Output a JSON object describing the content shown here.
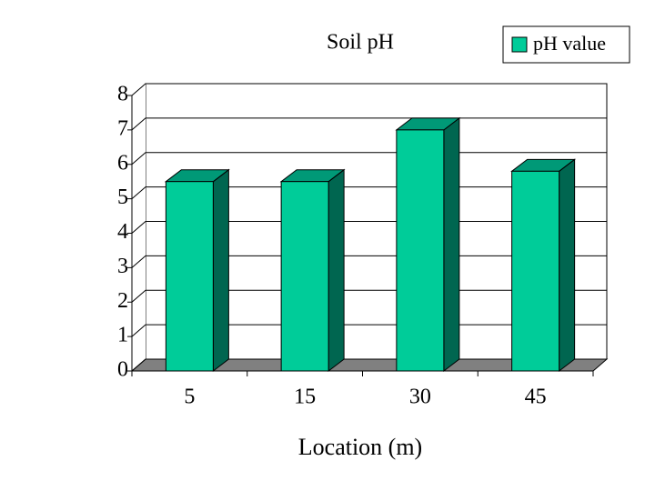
{
  "chart_data": {
    "type": "bar3d",
    "title": "Soil pH",
    "x_label": "Location (m)",
    "categories": [
      "5",
      "15",
      "30",
      "45"
    ],
    "series": [
      {
        "name": "pH value",
        "color": "#00cc99",
        "values": [
          5.5,
          5.5,
          7.0,
          5.8
        ]
      }
    ],
    "ylim": [
      0,
      8
    ],
    "yticks": [
      0,
      1,
      2,
      3,
      4,
      5,
      6,
      7,
      8
    ],
    "grid": true,
    "legend": "top-right"
  }
}
